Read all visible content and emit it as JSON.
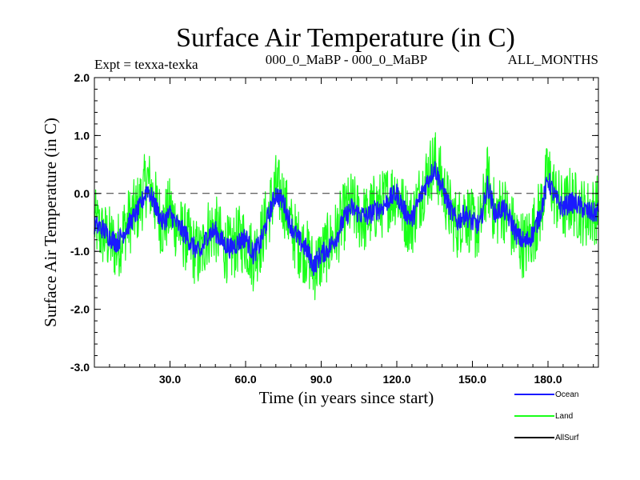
{
  "chart_data": {
    "type": "line",
    "title": "Surface Air Temperature (in C)",
    "subtitle_left": "Expt = texxa-texka",
    "subtitle_center": "000_0_MaBP - 000_0_MaBP",
    "subtitle_right": "ALL_MONTHS",
    "xlabel": "Time (in years since start)",
    "ylabel": "Surface Air Temperature (in C)",
    "xlim": [
      0,
      200
    ],
    "ylim": [
      -3.0,
      2.0
    ],
    "x_ticks": [
      30,
      60,
      90,
      120,
      150,
      180
    ],
    "x_tick_labels": [
      "30.0",
      "60.0",
      "90.0",
      "120.0",
      "150.0",
      "180.0"
    ],
    "y_ticks": [
      -3,
      -2,
      -1,
      0,
      1,
      2
    ],
    "y_tick_labels": [
      "-3.0",
      "-2.0",
      "-1.0",
      "0.0",
      "1.0",
      "2.0"
    ],
    "reference_line": 0.0,
    "series_draw_order": [
      "Land",
      "Ocean"
    ],
    "series": [
      {
        "name": "Ocean",
        "color": "#1a1aff",
        "x": [
          0,
          3,
          6,
          9,
          12,
          15,
          18,
          21,
          24,
          27,
          30,
          33,
          36,
          39,
          42,
          45,
          48,
          51,
          54,
          57,
          60,
          63,
          66,
          69,
          72,
          75,
          78,
          81,
          84,
          87,
          90,
          93,
          96,
          99,
          102,
          105,
          108,
          111,
          114,
          117,
          120,
          123,
          126,
          129,
          132,
          135,
          138,
          141,
          144,
          147,
          150,
          153,
          156,
          159,
          162,
          165,
          168,
          171,
          174,
          177,
          180,
          183,
          186,
          189,
          192,
          195,
          198,
          200
        ],
        "values": [
          -0.55,
          -0.6,
          -0.75,
          -0.85,
          -0.65,
          -0.45,
          -0.25,
          0.1,
          -0.2,
          -0.5,
          -0.35,
          -0.55,
          -0.7,
          -0.9,
          -1.05,
          -0.7,
          -0.65,
          -0.85,
          -0.95,
          -0.85,
          -0.75,
          -1.05,
          -0.85,
          -0.4,
          0.0,
          -0.15,
          -0.55,
          -0.8,
          -0.95,
          -1.25,
          -1.05,
          -0.95,
          -0.75,
          -0.45,
          -0.25,
          -0.35,
          -0.4,
          -0.3,
          -0.25,
          -0.1,
          0.0,
          -0.3,
          -0.45,
          -0.1,
          0.2,
          0.45,
          0.1,
          -0.25,
          -0.5,
          -0.35,
          -0.5,
          -0.55,
          0.15,
          -0.35,
          -0.25,
          -0.45,
          -0.75,
          -0.85,
          -0.7,
          -0.35,
          0.25,
          -0.1,
          -0.25,
          -0.15,
          -0.2,
          -0.3,
          -0.35,
          -0.3
        ]
      },
      {
        "name": "Land",
        "color": "#1aff1a",
        "x": [
          0,
          3,
          6,
          9,
          12,
          15,
          18,
          21,
          24,
          27,
          30,
          33,
          36,
          39,
          42,
          45,
          48,
          51,
          54,
          57,
          60,
          63,
          66,
          69,
          72,
          75,
          78,
          81,
          84,
          87,
          90,
          93,
          96,
          99,
          102,
          105,
          108,
          111,
          114,
          117,
          120,
          123,
          126,
          129,
          132,
          135,
          138,
          141,
          144,
          147,
          150,
          153,
          156,
          159,
          162,
          165,
          168,
          171,
          174,
          177,
          180,
          183,
          186,
          189,
          192,
          195,
          198,
          200
        ],
        "values": [
          -0.5,
          -0.7,
          -0.8,
          -0.95,
          -0.6,
          -0.4,
          -0.2,
          0.25,
          -0.15,
          -0.55,
          -0.3,
          -0.6,
          -0.75,
          -0.95,
          -1.1,
          -0.65,
          -0.6,
          -0.9,
          -1.0,
          -0.8,
          -0.8,
          -1.1,
          -0.8,
          -0.35,
          0.1,
          -0.1,
          -0.6,
          -0.85,
          -1.0,
          -1.3,
          -1.1,
          -0.9,
          -0.7,
          -0.4,
          -0.2,
          -0.4,
          -0.45,
          -0.25,
          -0.2,
          -0.05,
          0.05,
          -0.35,
          -0.5,
          -0.05,
          0.3,
          0.55,
          0.15,
          -0.3,
          -0.55,
          -0.3,
          -0.55,
          -0.6,
          0.25,
          -0.4,
          -0.2,
          -0.5,
          -0.8,
          -0.9,
          -0.65,
          -0.3,
          0.35,
          -0.05,
          -0.3,
          -0.1,
          -0.25,
          -0.35,
          -0.3,
          -0.25
        ],
        "spread": 0.6
      },
      {
        "name": "AllSurf",
        "color": "#000000",
        "x": [],
        "values": []
      }
    ],
    "legend": [
      "Ocean",
      "Land",
      "AllSurf"
    ],
    "legend_position": "bottom-right",
    "grid": false
  }
}
